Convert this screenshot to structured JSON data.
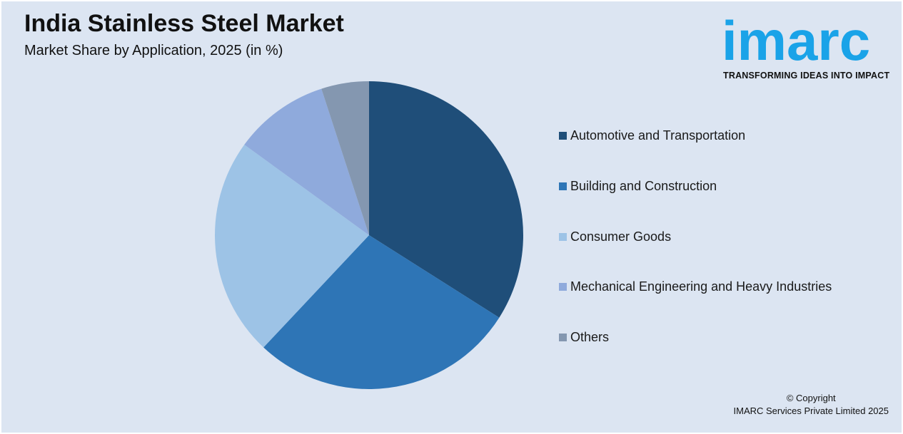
{
  "header": {
    "title": "India Stainless Steel Market",
    "subtitle": "Market Share by Application, 2025 (in %)"
  },
  "logo": {
    "wordmark": "imarc",
    "tagline": "TRANSFORMING IDEAS INTO IMPACT",
    "color": "#1aa3e8"
  },
  "chart_data": {
    "type": "pie",
    "title": "India Stainless Steel Market",
    "subtitle": "Market Share by Application, 2025 (in %)",
    "categories": [
      "Automotive and Transportation",
      "Building and Construction",
      "Consumer Goods",
      "Mechanical Engineering and Heavy Industries",
      "Others"
    ],
    "values": [
      34,
      28,
      23,
      10,
      5
    ],
    "colors": [
      "#1f4e79",
      "#2e75b6",
      "#9dc3e6",
      "#8faadc",
      "#8497b0"
    ],
    "start_angle_deg": 0,
    "direction": "clockwise",
    "legend_position": "right"
  },
  "footer": {
    "copyright_line1": "© Copyright",
    "copyright_line2": "IMARC Services Private Limited 2025"
  }
}
